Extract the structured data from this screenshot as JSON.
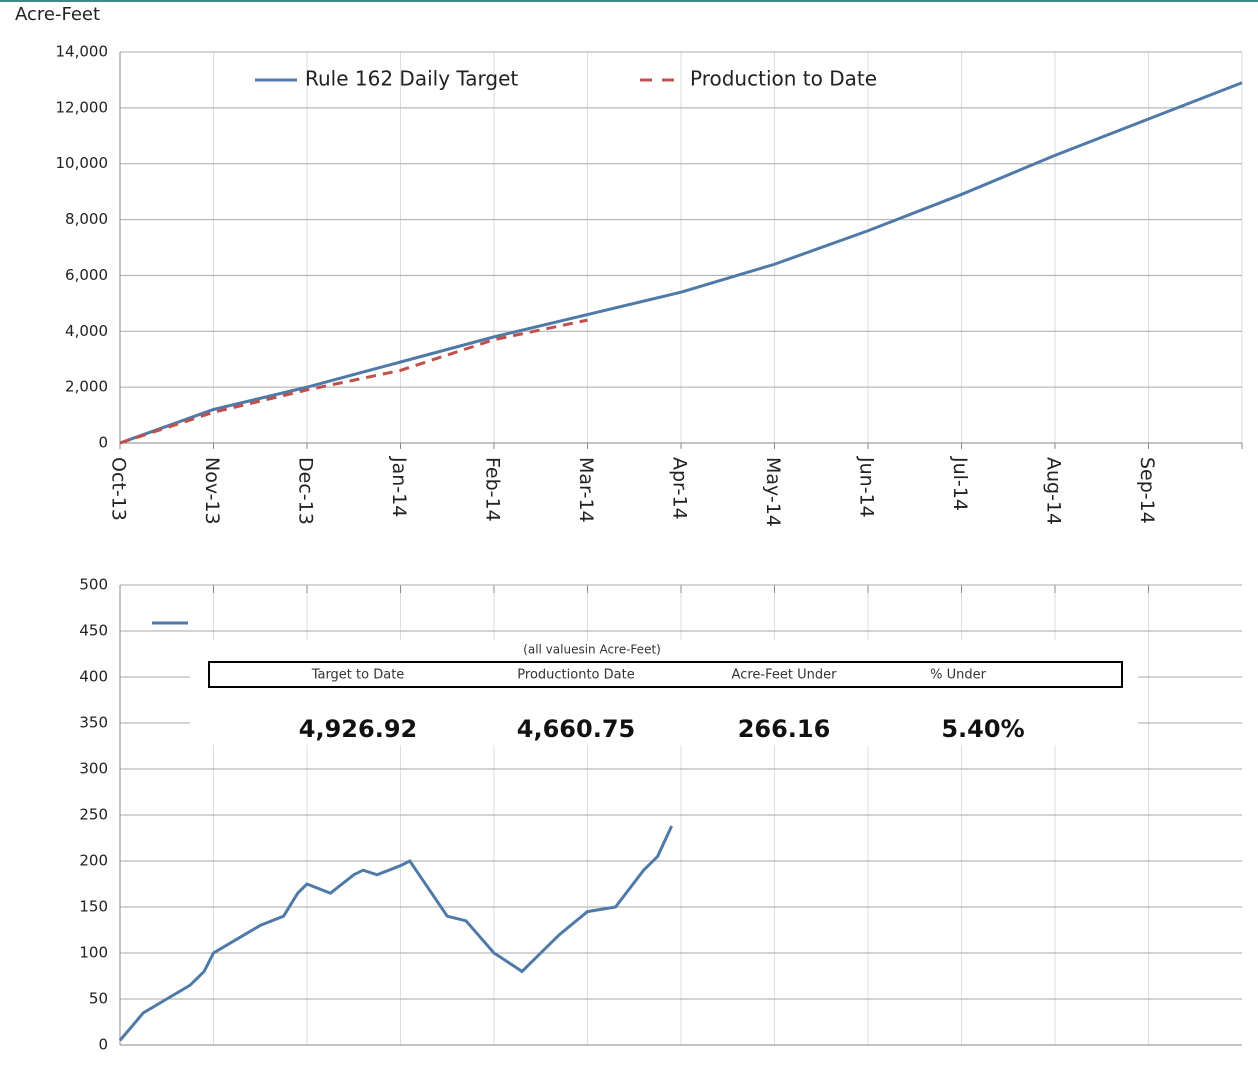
{
  "chart_data": [
    {
      "type": "line",
      "y_label": "Acre-Feet",
      "categories": [
        "Oct-13",
        "Nov-13",
        "Dec-13",
        "Jan-14",
        "Feb-14",
        "Mar-14",
        "Apr-14",
        "May-14",
        "Jun-14",
        "Jul-14",
        "Aug-14",
        "Sep-14",
        null
      ],
      "series": [
        {
          "name": "Rule 162 Daily Target",
          "color": "#4f7aa8",
          "dash": false,
          "values": [
            0,
            1200,
            2000,
            2900,
            3800,
            4600,
            5400,
            6400,
            7600,
            8900,
            10300,
            11600,
            12900
          ]
        },
        {
          "name": "Production to Date",
          "color": "#c0504d",
          "dash": true,
          "values": [
            0,
            1100,
            1900,
            2600,
            3700,
            4400,
            null,
            null,
            null,
            null,
            null,
            null,
            null
          ]
        }
      ],
      "ylim": [
        0,
        14000
      ],
      "yticks": [
        0,
        {
          "value": 2000,
          "label": "2,000"
        },
        {
          "value": 4000,
          "label": "4,000"
        },
        {
          "value": 6000,
          "label": "6,000"
        },
        {
          "value": 8000,
          "label": "8,000"
        },
        {
          "value": 10000,
          "label": "10,000"
        },
        {
          "value": 12000,
          "label": "12,000"
        },
        {
          "value": 14000,
          "label": "14,000"
        }
      ],
      "grid": true
    },
    {
      "type": "line",
      "x": [
        0,
        0.25,
        0.5,
        0.75,
        0.9,
        1.0,
        1.25,
        1.5,
        1.75,
        1.9,
        2.0,
        2.25,
        2.5,
        2.6,
        2.75,
        3.0,
        3.1,
        3.5,
        3.7,
        4.0,
        4.3,
        4.4,
        4.7,
        5.0,
        5.3,
        5.6,
        5.75,
        5.9
      ],
      "series": [
        {
          "color": "#4f7aa8",
          "values": [
            5,
            35,
            50,
            65,
            80,
            100,
            115,
            130,
            140,
            165,
            175,
            165,
            185,
            190,
            185,
            195,
            200,
            140,
            135,
            100,
            80,
            90,
            120,
            145,
            150,
            190,
            205,
            238
          ]
        }
      ],
      "xlim": [
        0,
        12
      ],
      "ylim": [
        0,
        500
      ],
      "yticks": [
        0,
        50,
        100,
        150,
        200,
        250,
        300,
        350,
        400,
        450,
        500
      ],
      "grid": true
    }
  ],
  "table": {
    "caption": "(all valuesin Acre-Feet)",
    "headers": [
      "Target to Date",
      "Productionto Date",
      "Acre-Feet Under",
      "% Under"
    ],
    "values": [
      "4,926.92",
      "4,660.75",
      "266.16",
      "5.40%"
    ]
  }
}
